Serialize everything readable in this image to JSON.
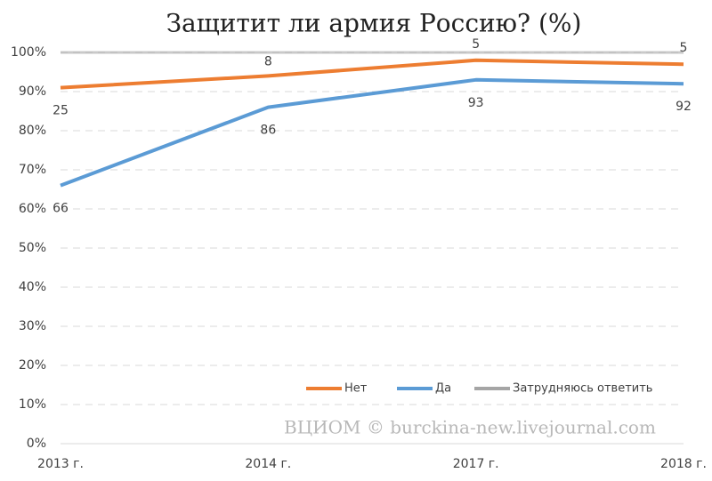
{
  "chart_data": {
    "type": "line",
    "stacked": true,
    "title": "Защитит ли армия Россию? (%)",
    "annotation": "ВЦИОМ © burckina-new.livejournal.com",
    "categories": [
      "2013 г.",
      "2014 г.",
      "2017 г.",
      "2018 г."
    ],
    "series": [
      {
        "name": "Нет",
        "color": "#ed7d31",
        "values": [
          25,
          8,
          5,
          5
        ]
      },
      {
        "name": "Да",
        "color": "#5b9bd5",
        "values": [
          66,
          86,
          93,
          92
        ]
      },
      {
        "name": "Затрудняюсь  ответить",
        "color": "#a5a5a5",
        "values": [
          9,
          6,
          2,
          3
        ]
      }
    ],
    "ylim": [
      0,
      100
    ],
    "yticks": [
      {
        "value": 0,
        "label": "0%"
      },
      {
        "value": 10,
        "label": "10%"
      },
      {
        "value": 20,
        "label": "20%"
      },
      {
        "value": 30,
        "label": "30%"
      },
      {
        "value": 40,
        "label": "40%"
      },
      {
        "value": 50,
        "label": "50%"
      },
      {
        "value": 60,
        "label": "60%"
      },
      {
        "value": 70,
        "label": "70%"
      },
      {
        "value": 80,
        "label": "80%"
      },
      {
        "value": 90,
        "label": "90%"
      },
      {
        "value": 100,
        "label": "100%"
      }
    ],
    "grid": true,
    "legend": "bottom-right"
  }
}
